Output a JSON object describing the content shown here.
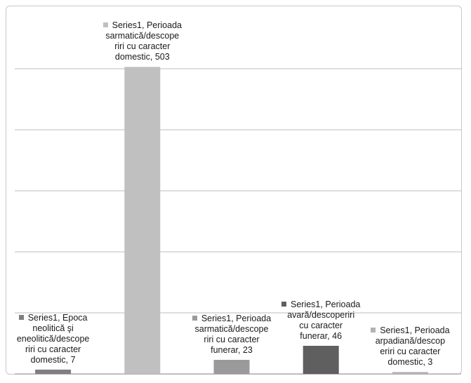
{
  "chart_data": {
    "type": "bar",
    "grid": true,
    "legend": "none",
    "ylim": [
      0,
      600
    ],
    "yticks": [
      0,
      100,
      200,
      300,
      400,
      500
    ],
    "series": [
      {
        "values": [
          7,
          503,
          23,
          46,
          3
        ]
      }
    ],
    "categories": [
      "Epoca neolitică şi eneolitică/descoperiri cu caracter domestic",
      "Perioada sarmatică/descoperiri cu caracter domestic",
      "Perioada sarmatică/descoperiri cu caracter funerar",
      "Perioada avară/descoperiri cu caracter funerar",
      "Perioada arpadiană/descoperiri cu caracter domestic"
    ],
    "bar_colors": [
      "#7f7f7f",
      "#c0c0c0",
      "#9a9a9a",
      "#5f5f5f",
      "#b2b2b2"
    ],
    "data_labels": [
      "Series1, Epoca\nneolitică şi\neneolitică/descope\nriri cu caracter\ndomestic, 7",
      "Series1, Perioada\nsarmatică/descope\nriri cu caracter\ndomestic, 503",
      "Series1, Perioada\nsarmatică/descope\nriri cu caracter\nfunerar, 23",
      "Series1, Perioada\navară/descoperiri\ncu caracter\nfunerar, 46",
      "Series1, Perioada\narpadiană/descop\neriri cu caracter\ndomestic, 3"
    ]
  }
}
